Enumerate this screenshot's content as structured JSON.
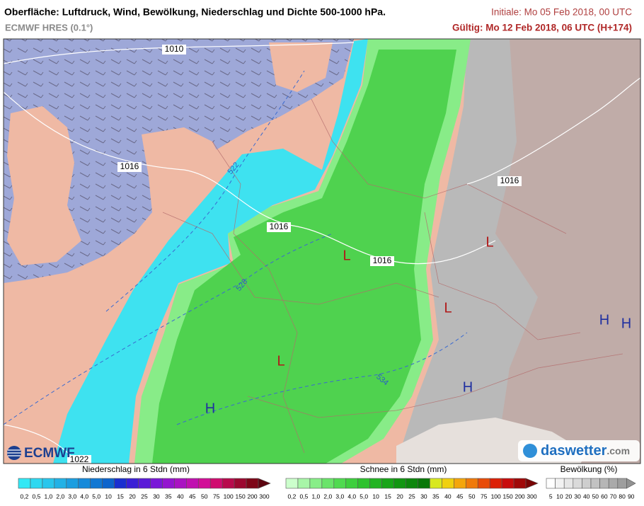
{
  "header": {
    "title": "Oberfläche: Luftdruck, Wind, Bewölkung, Niederschlag und Dichte 500-1000 hPa.",
    "model": "ECMWF HRES (0.1°)",
    "init": "Initiale: Mo 05 Feb 2018, 00 UTC",
    "valid": "Gültig: Mo 12 Feb 2018, 06 UTC (H+174)"
  },
  "map": {
    "isobar_labels": [
      "1010",
      "1016",
      "1016",
      "1016",
      "1016",
      "1022"
    ],
    "thickness_labels": [
      "522",
      "528",
      "534"
    ],
    "pressure_centers": [
      "L",
      "L",
      "L",
      "L",
      "H",
      "H",
      "H",
      "H"
    ],
    "logo_left": "ECMWF",
    "logo_right_name": "daswetter",
    "logo_right_domain": ".com"
  },
  "legend": {
    "precipitation": {
      "title": "Niederschlag in 6 Stdn (mm)",
      "ticks": [
        "0,2",
        "0,5",
        "1,0",
        "2,0",
        "3,0",
        "4,0",
        "5,0",
        "10",
        "15",
        "20",
        "25",
        "30",
        "35",
        "40",
        "45",
        "50",
        "75",
        "100",
        "150",
        "200",
        "300"
      ],
      "colors": [
        "#33e8f5",
        "#2fd8f0",
        "#29c6ec",
        "#22b2e6",
        "#1b9ee0",
        "#168ada",
        "#1178d3",
        "#0d64cc",
        "#1a2fd0",
        "#3a1fd6",
        "#5a1ad8",
        "#7a17d8",
        "#9414cf",
        "#aa12c2",
        "#c010b0",
        "#d20e98",
        "#d00c70",
        "#b80a4c",
        "#9c0830",
        "#7e0618",
        "#5c0410"
      ]
    },
    "snow": {
      "title": "Schnee in 6 Stdn (mm)",
      "ticks": [
        "0,2",
        "0,5",
        "1,0",
        "2,0",
        "3,0",
        "4,0",
        "5,0",
        "10",
        "15",
        "20",
        "25",
        "30",
        "35",
        "40",
        "45",
        "50",
        "75",
        "100",
        "150",
        "200",
        "300"
      ],
      "colors": [
        "#ccffcc",
        "#a8f5a8",
        "#88ee88",
        "#6ae46a",
        "#50da50",
        "#3ecf3e",
        "#2ec22e",
        "#22b422",
        "#18a518",
        "#119611",
        "#0c870c",
        "#087808",
        "#d8e820",
        "#f0d010",
        "#f4a60c",
        "#f07a0a",
        "#e84c08",
        "#dc2006",
        "#c80c0c",
        "#a00808",
        "#780404"
      ]
    },
    "clouds": {
      "title": "Bewölkung (%)",
      "ticks": [
        "5",
        "10",
        "20",
        "30",
        "40",
        "50",
        "60",
        "70",
        "80",
        "90"
      ],
      "colors": [
        "#ffffff",
        "#f2f2f2",
        "#e6e6e6",
        "#dadada",
        "#cecece",
        "#c2c2c2",
        "#b6b6b6",
        "#aaaaaa",
        "#9e9e9e",
        "#929292"
      ]
    }
  }
}
